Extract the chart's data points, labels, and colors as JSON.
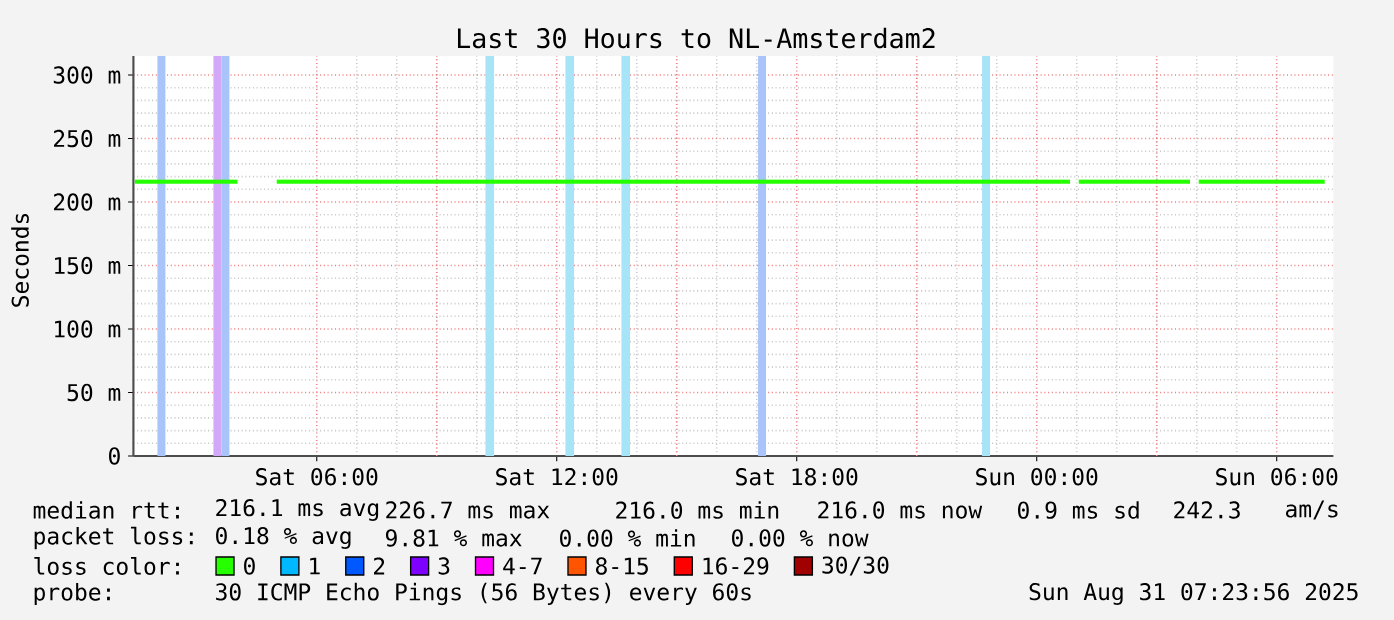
{
  "chart_data": {
    "type": "line",
    "title": "Last 30 Hours to NL-Amsterdam2",
    "ylabel": "Seconds",
    "x": [
      "2025-08-30T01:27",
      "2025-08-30T04:01",
      "2025-08-30T04:30",
      "2025-08-30T05:00",
      "2025-08-30T10:00",
      "2025-08-30T17:06",
      "2025-08-31T00:50",
      "2025-08-31T00:57",
      "2025-08-31T01:03",
      "2025-08-31T03:50",
      "2025-08-31T03:56",
      "2025-08-31T04:03",
      "2025-08-31T07:12"
    ],
    "series": [
      {
        "name": "0",
        "color": "#26ff00",
        "values": [
          216,
          216,
          null,
          216,
          216,
          216,
          216,
          null,
          216,
          216,
          null,
          216,
          216
        ]
      },
      {
        "name": "1",
        "color": "#00b8ff",
        "values": [
          null,
          null,
          null,
          null,
          null,
          null,
          null,
          null,
          null,
          null,
          null,
          null,
          null
        ]
      },
      {
        "name": "2",
        "color": "#0059ff",
        "values": [
          null,
          null,
          null,
          null,
          null,
          null,
          null,
          null,
          null,
          null,
          null,
          null,
          null
        ]
      },
      {
        "name": "3",
        "color": "#7e00ff",
        "values": [
          null,
          null,
          null,
          null,
          null,
          null,
          null,
          null,
          null,
          null,
          null,
          null,
          null
        ]
      },
      {
        "name": "4-7",
        "color": "#ff00ff",
        "values": [
          null,
          null,
          null,
          null,
          null,
          null,
          null,
          null,
          null,
          null,
          null,
          null,
          null
        ]
      },
      {
        "name": "8-15",
        "color": "#ff5500",
        "values": [
          null,
          null,
          null,
          null,
          null,
          null,
          null,
          null,
          null,
          null,
          null,
          null,
          null
        ]
      },
      {
        "name": "16-29",
        "color": "#ff0000",
        "values": [
          null,
          null,
          null,
          null,
          null,
          null,
          null,
          null,
          null,
          null,
          null,
          null,
          null
        ]
      },
      {
        "name": "30/30",
        "color": "#a00000",
        "values": [
          null,
          null,
          null,
          null,
          null,
          null,
          null,
          null,
          null,
          null,
          null,
          null,
          null
        ]
      }
    ],
    "legend_title": "loss color:",
    "legend": "bottom",
    "grid": true,
    "xlim": [
      "2025-08-30T01:25",
      "2025-08-31T07:25"
    ],
    "xticks": [
      {
        "value": "2025-08-30T06:00",
        "label": "Sat 06:00"
      },
      {
        "value": "2025-08-30T12:00",
        "label": "Sat 12:00"
      },
      {
        "value": "2025-08-30T18:00",
        "label": "Sat 18:00"
      },
      {
        "value": "2025-08-31T00:00",
        "label": "Sun 00:00"
      },
      {
        "value": "2025-08-31T06:00",
        "label": "Sun 06:00"
      }
    ],
    "ylim": [
      0,
      315
    ],
    "yticks": [
      0,
      {
        "value": 50,
        "label": "50 m"
      },
      {
        "value": 100,
        "label": "100 m"
      },
      {
        "value": 150,
        "label": "150 m"
      },
      {
        "value": 200,
        "label": "200 m"
      },
      {
        "value": 250,
        "label": "250 m"
      },
      {
        "value": 300,
        "label": "300 m"
      }
    ],
    "bands": [
      {
        "axis": "x",
        "from": "2025-08-30T02:01",
        "to": "2025-08-30T02:13",
        "color": "#a8c4f8"
      },
      {
        "axis": "x",
        "from": "2025-08-30T03:25",
        "to": "2025-08-30T03:37",
        "color": "#d4a8f8"
      },
      {
        "axis": "x",
        "from": "2025-08-30T03:37",
        "to": "2025-08-30T03:49",
        "color": "#a8c4f8"
      },
      {
        "axis": "x",
        "from": "2025-08-30T10:13",
        "to": "2025-08-30T10:26",
        "color": "#a8e4f8"
      },
      {
        "axis": "x",
        "from": "2025-08-30T12:13",
        "to": "2025-08-30T12:26",
        "color": "#a8e4f8"
      },
      {
        "axis": "x",
        "from": "2025-08-30T13:37",
        "to": "2025-08-30T13:50",
        "color": "#a8e4f8"
      },
      {
        "axis": "x",
        "from": "2025-08-30T17:02",
        "to": "2025-08-30T17:14",
        "color": "#a8c4f8"
      },
      {
        "axis": "x",
        "from": "2025-08-30T22:38",
        "to": "2025-08-30T22:50",
        "color": "#a8e4f8"
      }
    ],
    "annotations": [
      "median rtt:",
      "216.1 ms avg",
      "226.7 ms max",
      "216.0 ms min",
      "216.0 ms now",
      "0.9 ms sd",
      "242.3",
      "am/s",
      "packet loss:",
      "0.18 % avg",
      "9.81 % max",
      "0.00 % min",
      "0.00 % now",
      "probe:",
      "30 ICMP Echo Pings (56 Bytes) every 60s",
      "Sun Aug 31 07:23:56 2025"
    ]
  }
}
